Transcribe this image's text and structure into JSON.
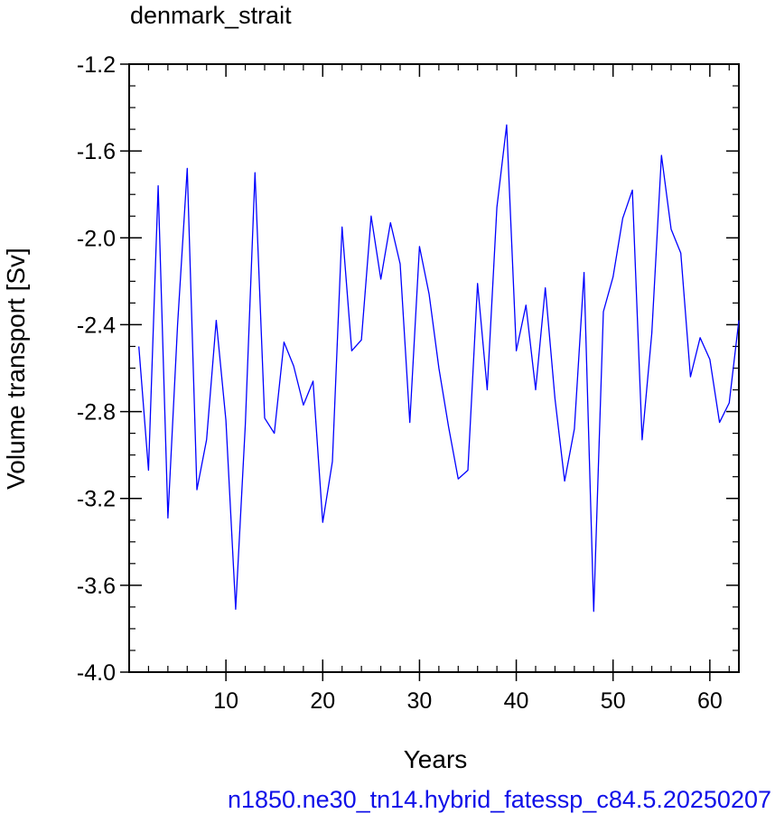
{
  "chart_data": {
    "type": "line",
    "title": "denmark_strait",
    "xlabel": "Years",
    "ylabel": "Volume transport [Sv]",
    "xlim": [
      0,
      63
    ],
    "ylim": [
      -4.0,
      -1.2
    ],
    "xticks": [
      10,
      20,
      30,
      40,
      50,
      60
    ],
    "xtick_labels": [
      "10",
      "20",
      "30",
      "40",
      "50",
      "60"
    ],
    "yticks": [
      -4.0,
      -3.6,
      -3.2,
      -2.8,
      -2.4,
      -2.0,
      -1.6,
      -1.2
    ],
    "ytick_labels": [
      "-4.0",
      "-3.6",
      "-3.2",
      "-2.8",
      "-2.4",
      "-2.0",
      "-1.6",
      "-1.2"
    ],
    "grid": false,
    "line_color": "#0000ff",
    "x": [
      1,
      2,
      3,
      4,
      5,
      6,
      7,
      8,
      9,
      10,
      11,
      12,
      13,
      14,
      15,
      16,
      17,
      18,
      19,
      20,
      21,
      22,
      23,
      24,
      25,
      26,
      27,
      28,
      29,
      30,
      31,
      32,
      33,
      34,
      35,
      36,
      37,
      38,
      39,
      40,
      41,
      42,
      43,
      44,
      45,
      46,
      47,
      48,
      49,
      50,
      51,
      52,
      53,
      54,
      55,
      56,
      57,
      58,
      59,
      60,
      61,
      62,
      63
    ],
    "y": [
      -2.5,
      -3.07,
      -1.76,
      -3.29,
      -2.4,
      -1.68,
      -3.16,
      -2.93,
      -2.38,
      -2.84,
      -3.71,
      -2.86,
      -1.7,
      -2.83,
      -2.9,
      -2.48,
      -2.59,
      -2.77,
      -2.66,
      -3.31,
      -3.03,
      -1.95,
      -2.52,
      -2.47,
      -1.9,
      -2.19,
      -1.93,
      -2.12,
      -2.85,
      -2.04,
      -2.26,
      -2.6,
      -2.87,
      -3.11,
      -3.07,
      -2.21,
      -2.7,
      -1.86,
      -1.48,
      -2.52,
      -2.31,
      -2.7,
      -2.23,
      -2.74,
      -3.12,
      -2.88,
      -2.16,
      -3.72,
      -2.34,
      -2.18,
      -1.91,
      -1.78,
      -2.93,
      -2.44,
      -1.62,
      -1.96,
      -2.07,
      -2.64,
      -2.46,
      -2.56,
      -2.85,
      -2.76,
      -2.38
    ]
  },
  "caption": "n1850.ne30_tn14.hybrid_fatessp_c84.5.20250207"
}
